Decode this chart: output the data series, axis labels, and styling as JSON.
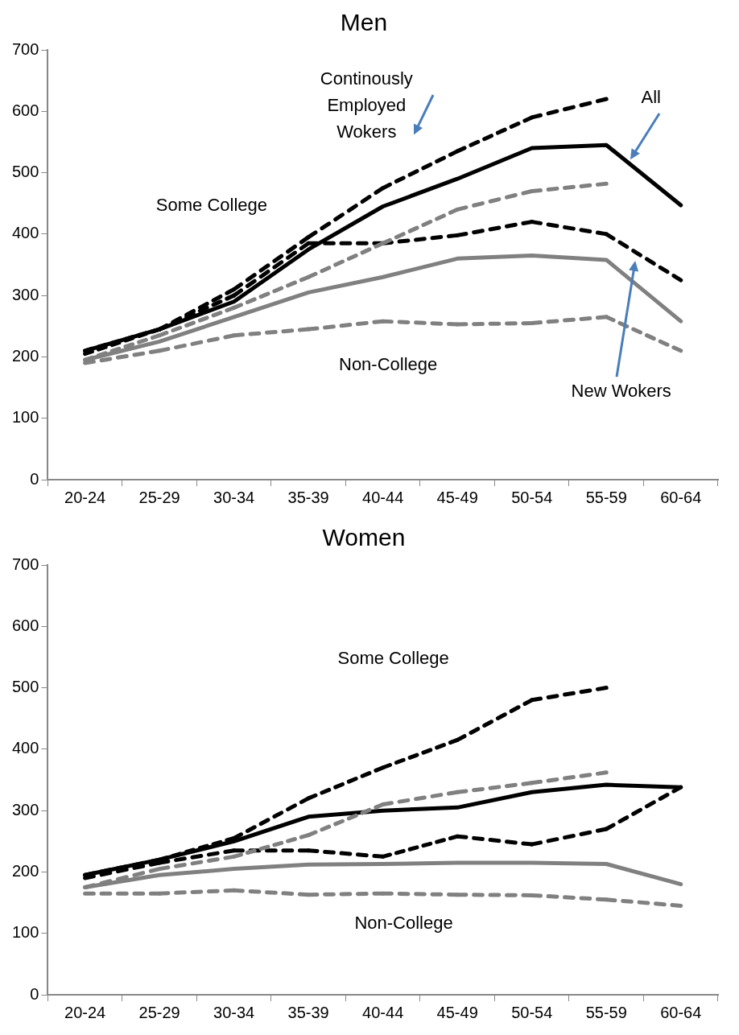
{
  "chart_data": [
    {
      "type": "line",
      "title": "Men",
      "categories": [
        "20-24",
        "25-29",
        "30-34",
        "35-39",
        "40-44",
        "45-49",
        "50-54",
        "55-59",
        "60-64"
      ],
      "ylim": [
        0,
        700
      ],
      "yticks": [
        0,
        100,
        200,
        300,
        400,
        500,
        600,
        700
      ],
      "grid": false,
      "legend": false,
      "marker": "none",
      "series": [
        {
          "color": "#808080",
          "line_style": "dashed",
          "values": [
            190,
            210,
            235,
            245,
            258,
            253,
            255,
            265,
            210
          ]
        },
        {
          "color": "#808080",
          "line_style": "solid",
          "values": [
            195,
            225,
            265,
            305,
            330,
            360,
            365,
            358,
            258
          ]
        },
        {
          "color": "#808080",
          "line_style": "dashed",
          "values": [
            195,
            235,
            280,
            330,
            385,
            440,
            470,
            482,
            null
          ]
        },
        {
          "color": "#000000",
          "line_style": "dashed",
          "values": [
            210,
            245,
            300,
            385,
            385,
            398,
            420,
            400,
            325
          ]
        },
        {
          "color": "#000000",
          "line_style": "solid",
          "values": [
            210,
            245,
            290,
            375,
            445,
            490,
            540,
            545,
            447
          ]
        },
        {
          "color": "#000000",
          "line_style": "dashed",
          "values": [
            205,
            245,
            310,
            395,
            475,
            535,
            590,
            620,
            null
          ]
        }
      ],
      "annotations": [
        "Continously Employed Wokers",
        "All",
        "Some College",
        "Non-College",
        "New Wokers"
      ]
    },
    {
      "type": "line",
      "title": "Women",
      "categories": [
        "20-24",
        "25-29",
        "30-34",
        "35-39",
        "40-44",
        "45-49",
        "50-54",
        "55-59",
        "60-64"
      ],
      "ylim": [
        0,
        700
      ],
      "yticks": [
        0,
        100,
        200,
        300,
        400,
        500,
        600,
        700
      ],
      "grid": false,
      "legend": false,
      "marker": "none",
      "series": [
        {
          "color": "#808080",
          "line_style": "dashed",
          "values": [
            165,
            165,
            170,
            163,
            165,
            163,
            162,
            155,
            145
          ]
        },
        {
          "color": "#808080",
          "line_style": "solid",
          "values": [
            175,
            195,
            205,
            212,
            213,
            215,
            215,
            213,
            180
          ]
        },
        {
          "color": "#808080",
          "line_style": "dashed",
          "values": [
            175,
            205,
            225,
            260,
            310,
            330,
            345,
            362,
            null
          ]
        },
        {
          "color": "#000000",
          "line_style": "dashed",
          "values": [
            190,
            215,
            235,
            235,
            225,
            258,
            245,
            270,
            338
          ]
        },
        {
          "color": "#000000",
          "line_style": "solid",
          "values": [
            195,
            220,
            250,
            290,
            300,
            305,
            330,
            342,
            338
          ]
        },
        {
          "color": "#000000",
          "line_style": "dashed",
          "values": [
            195,
            220,
            255,
            320,
            370,
            415,
            480,
            500,
            null
          ]
        }
      ],
      "annotations": [
        "Some College",
        "Non-College"
      ]
    }
  ]
}
